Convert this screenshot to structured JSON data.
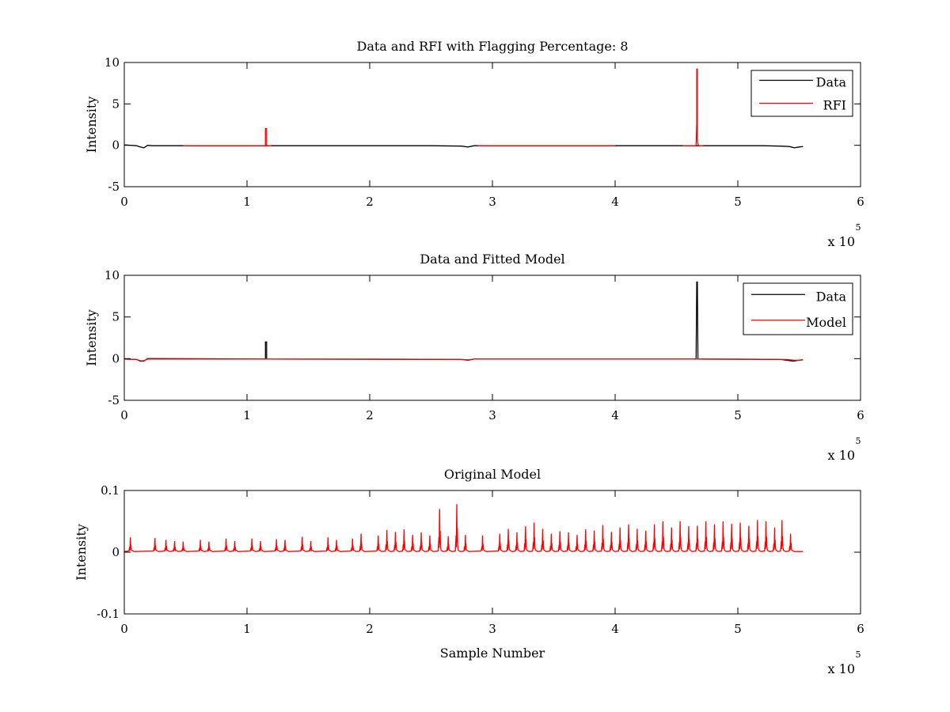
{
  "figure": {
    "background": "#ffffff",
    "axis_color": "#000000"
  },
  "chart_data": [
    {
      "type": "line",
      "title": "Data and RFI with Flagging Percentage: 8",
      "xlabel": "",
      "ylabel": "Intensity",
      "xlim": [
        0,
        6
      ],
      "ylim": [
        -5,
        10
      ],
      "xticks": [
        0,
        1,
        2,
        3,
        4,
        5,
        6
      ],
      "xtick_labels": [
        "0",
        "1",
        "2",
        "3",
        "4",
        "5",
        "6"
      ],
      "yticks": [
        -5,
        0,
        5,
        10
      ],
      "ytick_labels": [
        "-5",
        "0",
        "5",
        "10"
      ],
      "x_multiplier": {
        "base": "x 10",
        "exponent": "5"
      },
      "legend": {
        "position": "top-right",
        "entries": [
          {
            "name": "Data",
            "color": "#000000"
          },
          {
            "name": "RFI",
            "color": "#ff0000"
          }
        ]
      },
      "series": [
        {
          "name": "Data",
          "color": "#000000",
          "x": [
            0.0,
            0.1,
            0.13,
            0.16,
            0.19,
            0.23,
            0.5,
            1.0,
            1.5,
            2.0,
            2.5,
            2.75,
            2.8,
            2.85,
            3.0,
            3.5,
            4.0,
            4.5,
            5.0,
            5.2,
            5.35,
            5.42,
            5.46,
            5.5,
            5.53
          ],
          "y": [
            0.05,
            -0.05,
            -0.2,
            -0.3,
            0.0,
            -0.05,
            -0.05,
            -0.05,
            -0.05,
            -0.05,
            -0.05,
            -0.1,
            -0.2,
            -0.05,
            -0.05,
            -0.05,
            -0.05,
            -0.05,
            -0.05,
            -0.05,
            -0.1,
            -0.15,
            -0.3,
            -0.2,
            -0.15
          ]
        },
        {
          "name": "RFI",
          "color": "#ff0000",
          "segments": [
            {
              "x": [
                0.48,
                1.0
              ],
              "y": [
                -0.05,
                -0.05
              ]
            },
            {
              "x": [
                1.0,
                1.15,
                1.15,
                1.16,
                1.16,
                1.2
              ],
              "y": [
                -0.05,
                -0.05,
                2.0,
                2.0,
                -0.05,
                -0.05
              ]
            },
            {
              "x": [
                2.88,
                4.0
              ],
              "y": [
                -0.05,
                -0.05
              ]
            },
            {
              "x": [
                4.55,
                4.66,
                4.665,
                4.665,
                4.67,
                4.67,
                4.675,
                4.68,
                4.72
              ],
              "y": [
                -0.05,
                -0.05,
                2.6,
                9.2,
                9.2,
                0.5,
                0.2,
                -0.05,
                -0.05
              ]
            }
          ]
        }
      ]
    },
    {
      "type": "line",
      "title": "Data and Fitted Model",
      "xlabel": "",
      "ylabel": "Intensity",
      "xlim": [
        0,
        6
      ],
      "ylim": [
        -5,
        10
      ],
      "xticks": [
        0,
        1,
        2,
        3,
        4,
        5,
        6
      ],
      "xtick_labels": [
        "0",
        "1",
        "2",
        "3",
        "4",
        "5",
        "6"
      ],
      "yticks": [
        -5,
        0,
        5,
        10
      ],
      "ytick_labels": [
        "-5",
        "0",
        "5",
        "10"
      ],
      "x_multiplier": {
        "base": "x 10",
        "exponent": "5"
      },
      "legend": {
        "position": "top-right",
        "entries": [
          {
            "name": "Data",
            "color": "#000000"
          },
          {
            "name": "Model",
            "color": "#ff0000"
          }
        ]
      },
      "series": [
        {
          "name": "Data",
          "color": "#000000",
          "x": [
            0.0,
            0.1,
            0.13,
            0.16,
            0.19,
            1.15,
            1.15,
            1.16,
            1.16,
            2.75,
            2.8,
            2.85,
            4.66,
            4.665,
            4.67,
            4.675,
            5.35,
            5.45,
            5.5,
            5.53
          ],
          "y": [
            -0.05,
            -0.1,
            -0.3,
            -0.3,
            0.0,
            -0.05,
            2.0,
            2.0,
            -0.05,
            -0.1,
            -0.2,
            -0.05,
            -0.05,
            9.2,
            9.2,
            -0.05,
            -0.1,
            -0.3,
            -0.2,
            -0.15
          ]
        },
        {
          "name": "Model",
          "color": "#ff0000",
          "x": [
            0.0,
            0.1,
            0.13,
            0.16,
            0.19,
            0.25,
            1.0,
            2.0,
            2.75,
            2.8,
            2.85,
            3.0,
            4.0,
            5.0,
            5.4,
            5.46,
            5.5,
            5.53
          ],
          "y": [
            -0.05,
            -0.1,
            -0.25,
            -0.25,
            -0.05,
            -0.05,
            -0.05,
            -0.05,
            -0.1,
            -0.15,
            -0.05,
            -0.05,
            -0.05,
            -0.05,
            -0.1,
            -0.2,
            -0.2,
            -0.1
          ]
        }
      ]
    },
    {
      "type": "line",
      "title": "Original Model",
      "xlabel": "Sample Number",
      "ylabel": "Intensity",
      "xlim": [
        0,
        6
      ],
      "ylim": [
        -0.1,
        0.1
      ],
      "xticks": [
        0,
        1,
        2,
        3,
        4,
        5,
        6
      ],
      "xtick_labels": [
        "0",
        "1",
        "2",
        "3",
        "4",
        "5",
        "6"
      ],
      "yticks": [
        -0.1,
        0,
        0.1
      ],
      "ytick_labels": [
        "-0.1",
        "0",
        "0.1"
      ],
      "x_multiplier": {
        "base": "x 10",
        "exponent": "5"
      },
      "series": [
        {
          "name": "Original Model",
          "color": "#ff0000",
          "x_end": 5.53,
          "peaks": [
            {
              "x": 0.05,
              "y": 0.024
            },
            {
              "x": 0.25,
              "y": 0.023
            },
            {
              "x": 0.34,
              "y": 0.02
            },
            {
              "x": 0.41,
              "y": 0.018
            },
            {
              "x": 0.48,
              "y": 0.017
            },
            {
              "x": 0.62,
              "y": 0.02
            },
            {
              "x": 0.69,
              "y": 0.017
            },
            {
              "x": 0.83,
              "y": 0.022
            },
            {
              "x": 0.9,
              "y": 0.018
            },
            {
              "x": 1.04,
              "y": 0.022
            },
            {
              "x": 1.11,
              "y": 0.018
            },
            {
              "x": 1.24,
              "y": 0.021
            },
            {
              "x": 1.31,
              "y": 0.02
            },
            {
              "x": 1.45,
              "y": 0.025
            },
            {
              "x": 1.52,
              "y": 0.018
            },
            {
              "x": 1.66,
              "y": 0.024
            },
            {
              "x": 1.73,
              "y": 0.02
            },
            {
              "x": 1.86,
              "y": 0.022
            },
            {
              "x": 1.93,
              "y": 0.03
            },
            {
              "x": 2.07,
              "y": 0.027
            },
            {
              "x": 2.14,
              "y": 0.036
            },
            {
              "x": 2.21,
              "y": 0.033
            },
            {
              "x": 2.28,
              "y": 0.037
            },
            {
              "x": 2.35,
              "y": 0.028
            },
            {
              "x": 2.42,
              "y": 0.032
            },
            {
              "x": 2.49,
              "y": 0.027
            },
            {
              "x": 2.57,
              "y": 0.07
            },
            {
              "x": 2.64,
              "y": 0.026
            },
            {
              "x": 2.71,
              "y": 0.078
            },
            {
              "x": 2.78,
              "y": 0.028
            },
            {
              "x": 2.92,
              "y": 0.027
            },
            {
              "x": 3.06,
              "y": 0.03
            },
            {
              "x": 3.13,
              "y": 0.038
            },
            {
              "x": 3.2,
              "y": 0.032
            },
            {
              "x": 3.27,
              "y": 0.042
            },
            {
              "x": 3.34,
              "y": 0.048
            },
            {
              "x": 3.41,
              "y": 0.038
            },
            {
              "x": 3.48,
              "y": 0.03
            },
            {
              "x": 3.55,
              "y": 0.034
            },
            {
              "x": 3.62,
              "y": 0.032
            },
            {
              "x": 3.69,
              "y": 0.028
            },
            {
              "x": 3.76,
              "y": 0.037
            },
            {
              "x": 3.83,
              "y": 0.035
            },
            {
              "x": 3.9,
              "y": 0.044
            },
            {
              "x": 3.97,
              "y": 0.033
            },
            {
              "x": 4.04,
              "y": 0.04
            },
            {
              "x": 4.11,
              "y": 0.045
            },
            {
              "x": 4.18,
              "y": 0.038
            },
            {
              "x": 4.25,
              "y": 0.035
            },
            {
              "x": 4.32,
              "y": 0.045
            },
            {
              "x": 4.39,
              "y": 0.05
            },
            {
              "x": 4.46,
              "y": 0.04
            },
            {
              "x": 4.53,
              "y": 0.05
            },
            {
              "x": 4.6,
              "y": 0.042
            },
            {
              "x": 4.67,
              "y": 0.043
            },
            {
              "x": 4.74,
              "y": 0.05
            },
            {
              "x": 4.81,
              "y": 0.045
            },
            {
              "x": 4.88,
              "y": 0.05
            },
            {
              "x": 4.95,
              "y": 0.046
            },
            {
              "x": 5.02,
              "y": 0.048
            },
            {
              "x": 5.09,
              "y": 0.043
            },
            {
              "x": 5.16,
              "y": 0.052
            },
            {
              "x": 5.23,
              "y": 0.05
            },
            {
              "x": 5.3,
              "y": 0.04
            },
            {
              "x": 5.36,
              "y": 0.052
            },
            {
              "x": 5.43,
              "y": 0.03
            }
          ]
        }
      ]
    }
  ]
}
